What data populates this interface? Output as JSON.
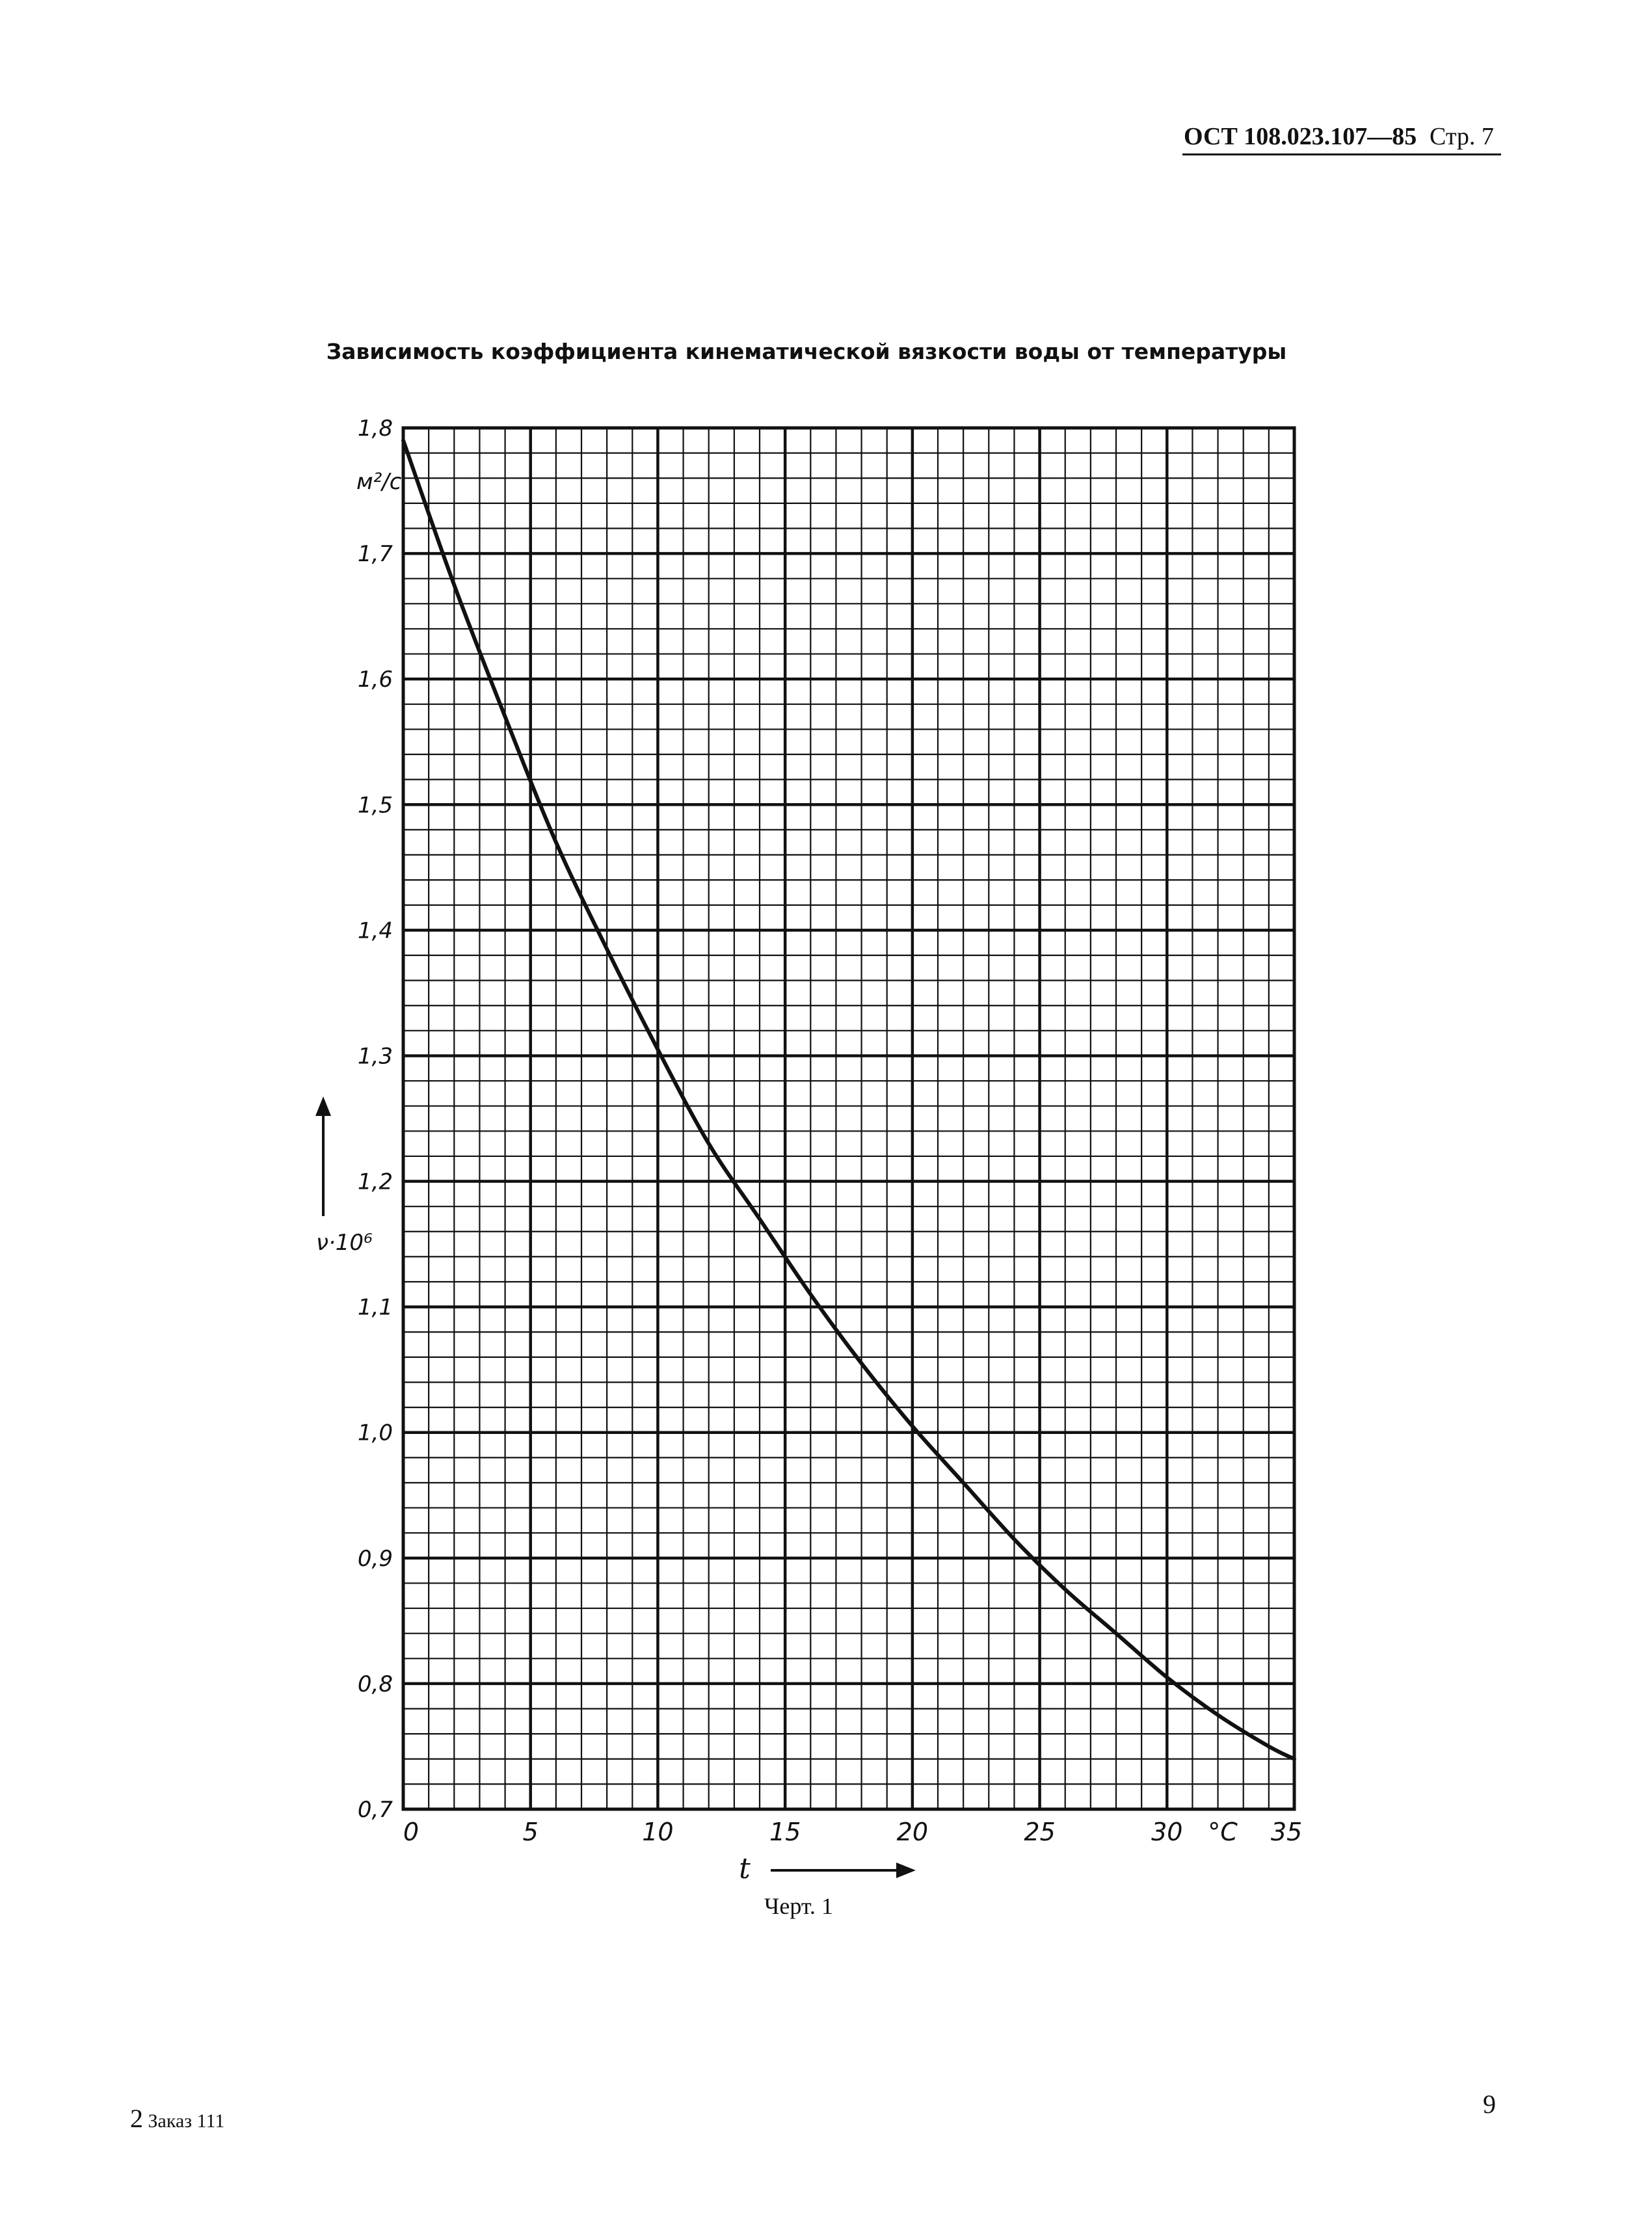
{
  "header": {
    "doc_code": "ОСТ 108.023.107—85",
    "page_label": "Стр. 7"
  },
  "chart_data": {
    "type": "line",
    "title": "Зависимость коэффициента кинематической вязкости воды от температуры",
    "xlabel": "t",
    "x_unit": "°C",
    "ylabel": "ν·10⁶",
    "y_unit": "м²/с",
    "xlim": [
      0,
      35
    ],
    "ylim": [
      0.7,
      1.8
    ],
    "x_ticks": [
      "0",
      "5",
      "10",
      "15",
      "20",
      "25",
      "30",
      "35"
    ],
    "y_ticks": [
      "0,7",
      "0,8",
      "0,9",
      "1,0",
      "1,1",
      "1,2",
      "1,3",
      "1,4",
      "1,5",
      "1,6",
      "1,7",
      "1,8"
    ],
    "grid": true,
    "series": [
      {
        "x": [
          0,
          2,
          4,
          6,
          8,
          10,
          12,
          14,
          16,
          18,
          20,
          22,
          24,
          26,
          28,
          30,
          32,
          34,
          35
        ],
        "y": [
          1.79,
          1.675,
          1.57,
          1.47,
          1.385,
          1.305,
          1.23,
          1.17,
          1.11,
          1.055,
          1.005,
          0.96,
          0.915,
          0.875,
          0.84,
          0.805,
          0.775,
          0.75,
          0.74
        ]
      }
    ]
  },
  "caption": "Черт. 1",
  "footer": {
    "sheet_number": "2",
    "order_label": "Заказ 111"
  },
  "page_number": "9"
}
